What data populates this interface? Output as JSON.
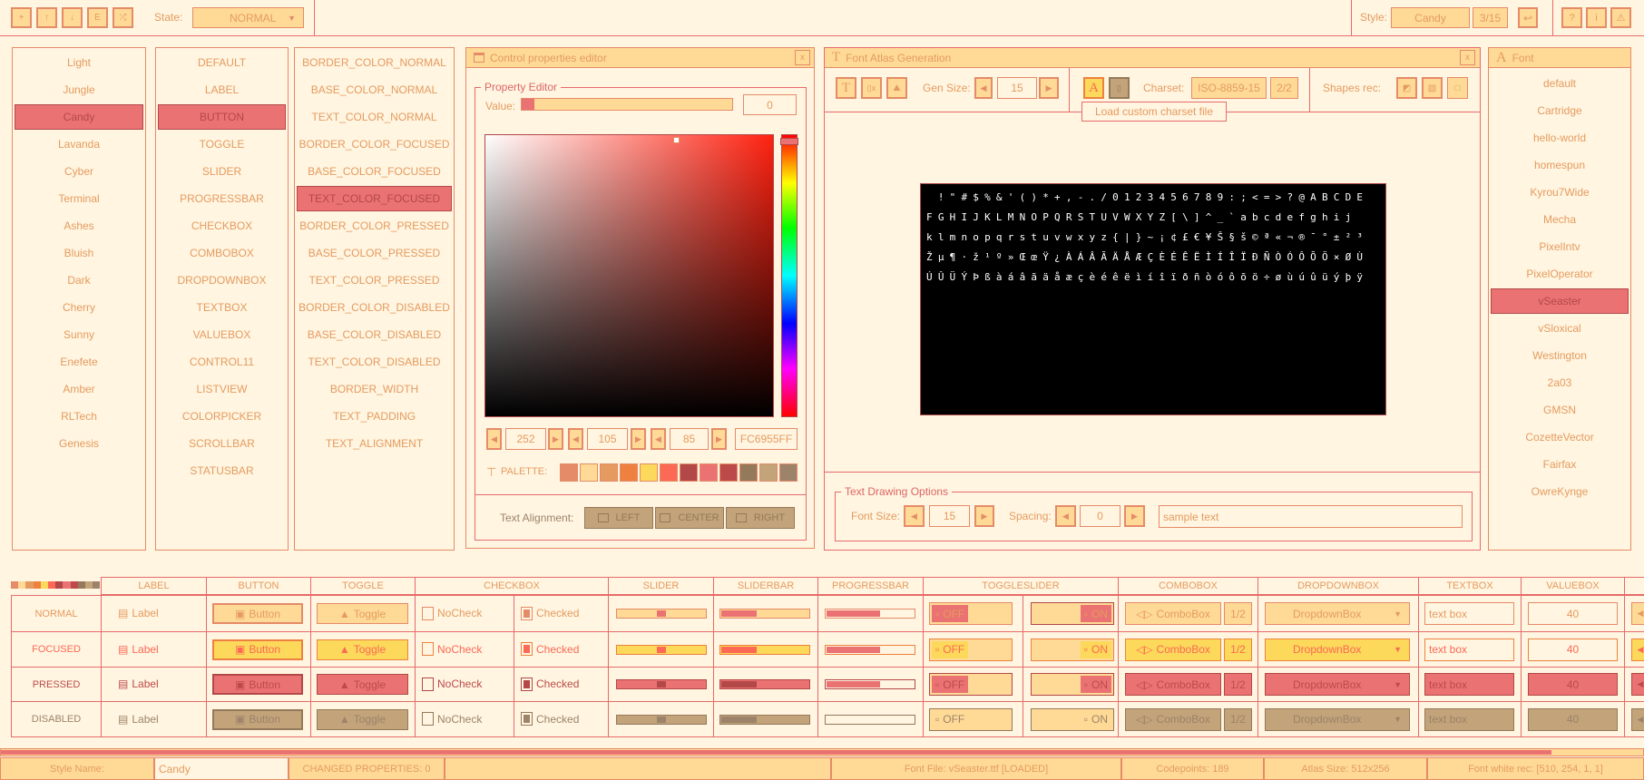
{
  "colors": {
    "background": "#fff5e1",
    "line": "#e66b6b",
    "normal": {
      "border": "#e58b68",
      "base": "#feda96",
      "text": "#e59b5f"
    },
    "focused": {
      "border": "#ee813f",
      "base": "#fcd85b",
      "text": "#fc6955"
    },
    "pressed": {
      "border": "#b34848",
      "base": "#eb7272",
      "text": "#bd4a4a"
    },
    "disabled": {
      "border": "#94795a",
      "base": "#c2a37a",
      "text": "#9c8369"
    }
  },
  "toolbar": {
    "file_buttons": [
      "new-file-icon",
      "load-file-icon",
      "save-file-icon",
      "export-file-icon",
      "random-icon"
    ],
    "state_label": "State:",
    "state_value": "NORMAL",
    "style_label": "Style:",
    "style_value": "Candy",
    "style_count": "3/15",
    "right_buttons": [
      "help-icon",
      "info-icon",
      "warning-icon"
    ]
  },
  "styles": {
    "selected": 2,
    "items": [
      "Light",
      "Jungle",
      "Candy",
      "Lavanda",
      "Cyber",
      "Terminal",
      "Ashes",
      "Bluish",
      "Dark",
      "Cherry",
      "Sunny",
      "Enefete",
      "Amber",
      "RLTech",
      "Genesis"
    ]
  },
  "controls": {
    "selected": 2,
    "items": [
      "DEFAULT",
      "LABEL",
      "BUTTON",
      "TOGGLE",
      "SLIDER",
      "PROGRESSBAR",
      "CHECKBOX",
      "COMBOBOX",
      "DROPDOWNBOX",
      "TEXTBOX",
      "VALUEBOX",
      "CONTROL11",
      "LISTVIEW",
      "COLORPICKER",
      "SCROLLBAR",
      "STATUSBAR"
    ]
  },
  "properties": {
    "selected": 5,
    "items": [
      "BORDER_COLOR_NORMAL",
      "BASE_COLOR_NORMAL",
      "TEXT_COLOR_NORMAL",
      "BORDER_COLOR_FOCUSED",
      "BASE_COLOR_FOCUSED",
      "TEXT_COLOR_FOCUSED",
      "BORDER_COLOR_PRESSED",
      "BASE_COLOR_PRESSED",
      "TEXT_COLOR_PRESSED",
      "BORDER_COLOR_DISABLED",
      "BASE_COLOR_DISABLED",
      "TEXT_COLOR_DISABLED",
      "BORDER_WIDTH",
      "TEXT_PADDING",
      "TEXT_ALIGNMENT"
    ]
  },
  "prop_editor": {
    "title": "Control properties editor",
    "close": "x",
    "group": "Property Editor",
    "value_label": "Value:",
    "value": "0",
    "value_fraction": 0.06,
    "picker_color": "#fc6955",
    "picker_saturation": 0.66,
    "picker_value": 0.99,
    "hue_fraction": 0.02,
    "r": "252",
    "g": "105",
    "b": "85",
    "hex": "FC6955FF",
    "palette_label": "PALETTE:",
    "palette": [
      "#e58b68",
      "#feda96",
      "#e59b5f",
      "#ee813f",
      "#fcd85b",
      "#fc6955",
      "#b34848",
      "#eb7272",
      "#bd4a4a",
      "#94795a",
      "#c2a37a",
      "#9c8369"
    ],
    "align_label": "Text Alignment:",
    "align_buttons": [
      "LEFT",
      "CENTER",
      "RIGHT"
    ]
  },
  "font_atlas": {
    "title": "Font Atlas Generation",
    "close": "x",
    "gen_size_label": "Gen Size:",
    "gen_size": "15",
    "charset_label": "Charset:",
    "charset": "ISO-8859-15",
    "charset_count": "2/2",
    "shapes_label": "Shapes rec:",
    "tooltip": "Load custom charset file",
    "glyph_rows": [
      " !\"#$%&'()*+,-./0123456789:;<=>?@ABCDE",
      "FGHIJKLMNOPQRSTUVWXYZ[\\]^_`abcdefghij",
      "klmnopqrstuvwxyz{|}~¡¢£€¥Š§š©ª«¬®¯°±²³",
      "Žµ¶·ž¹º»ŒœŸ¿ÀÁÂÃÄÅÆÇÈÉÊËÌÍÎÏÐÑÒÓÔÕÖ×ØÙ",
      "ÚÛÜÝÞßàáâãäåæçèéêëìíîïðñòóôõö÷øùúûüýþÿ"
    ],
    "text_group": "Text Drawing Options",
    "font_size_label": "Font Size:",
    "font_size": "15",
    "spacing_label": "Spacing:",
    "spacing": "0",
    "sample_text": "sample text"
  },
  "fonts": {
    "title": "Font",
    "selected": 8,
    "items": [
      "default",
      "Cartridge",
      "hello-world",
      "homespun",
      "Kyrou7Wide",
      "Mecha",
      "PixelIntv",
      "PixelOperator",
      "vSeaster",
      "vSloxical",
      "Westington",
      "2a03",
      "GMSN",
      "CozetteVector",
      "Fairfax",
      "OwreKynge"
    ]
  },
  "table": {
    "headers": [
      "LABEL",
      "BUTTON",
      "TOGGLE",
      "CHECKBOX",
      "SLIDER",
      "SLIDERBAR",
      "PROGRESSBAR",
      "TOGGLESLIDER",
      "COMBOBOX",
      "DROPDOWNBOX",
      "TEXTBOX",
      "VALUEBOX"
    ],
    "states": [
      "NORMAL",
      "FOCUSED",
      "PRESSED",
      "DISABLED"
    ],
    "labels": {
      "label": "Label",
      "button": "Button",
      "toggle": "Toggle",
      "nocheck": "NoCheck",
      "checked": "Checked",
      "off": "OFF",
      "on": "ON",
      "combo": "ComboBox",
      "combo_count": "1/2",
      "dropdown": "DropdownBox",
      "textbox": "text box",
      "valuebox": "40"
    },
    "slider_value": 0.5,
    "sliderbar_value": 0.4,
    "progress_value": 0.6
  },
  "statusbar": {
    "progress": 0.944,
    "style_name_label": "Style Name:",
    "style_name": "Candy",
    "changed": "CHANGED PROPERTIES: 0",
    "font_file": "Font File: vSeaster.ttf [LOADED]",
    "codepoints": "Codepoints: 189",
    "atlas_size": "Atlas Size: 512x256",
    "white_rec": "Font white rec: [510, 254, 1, 1]"
  }
}
